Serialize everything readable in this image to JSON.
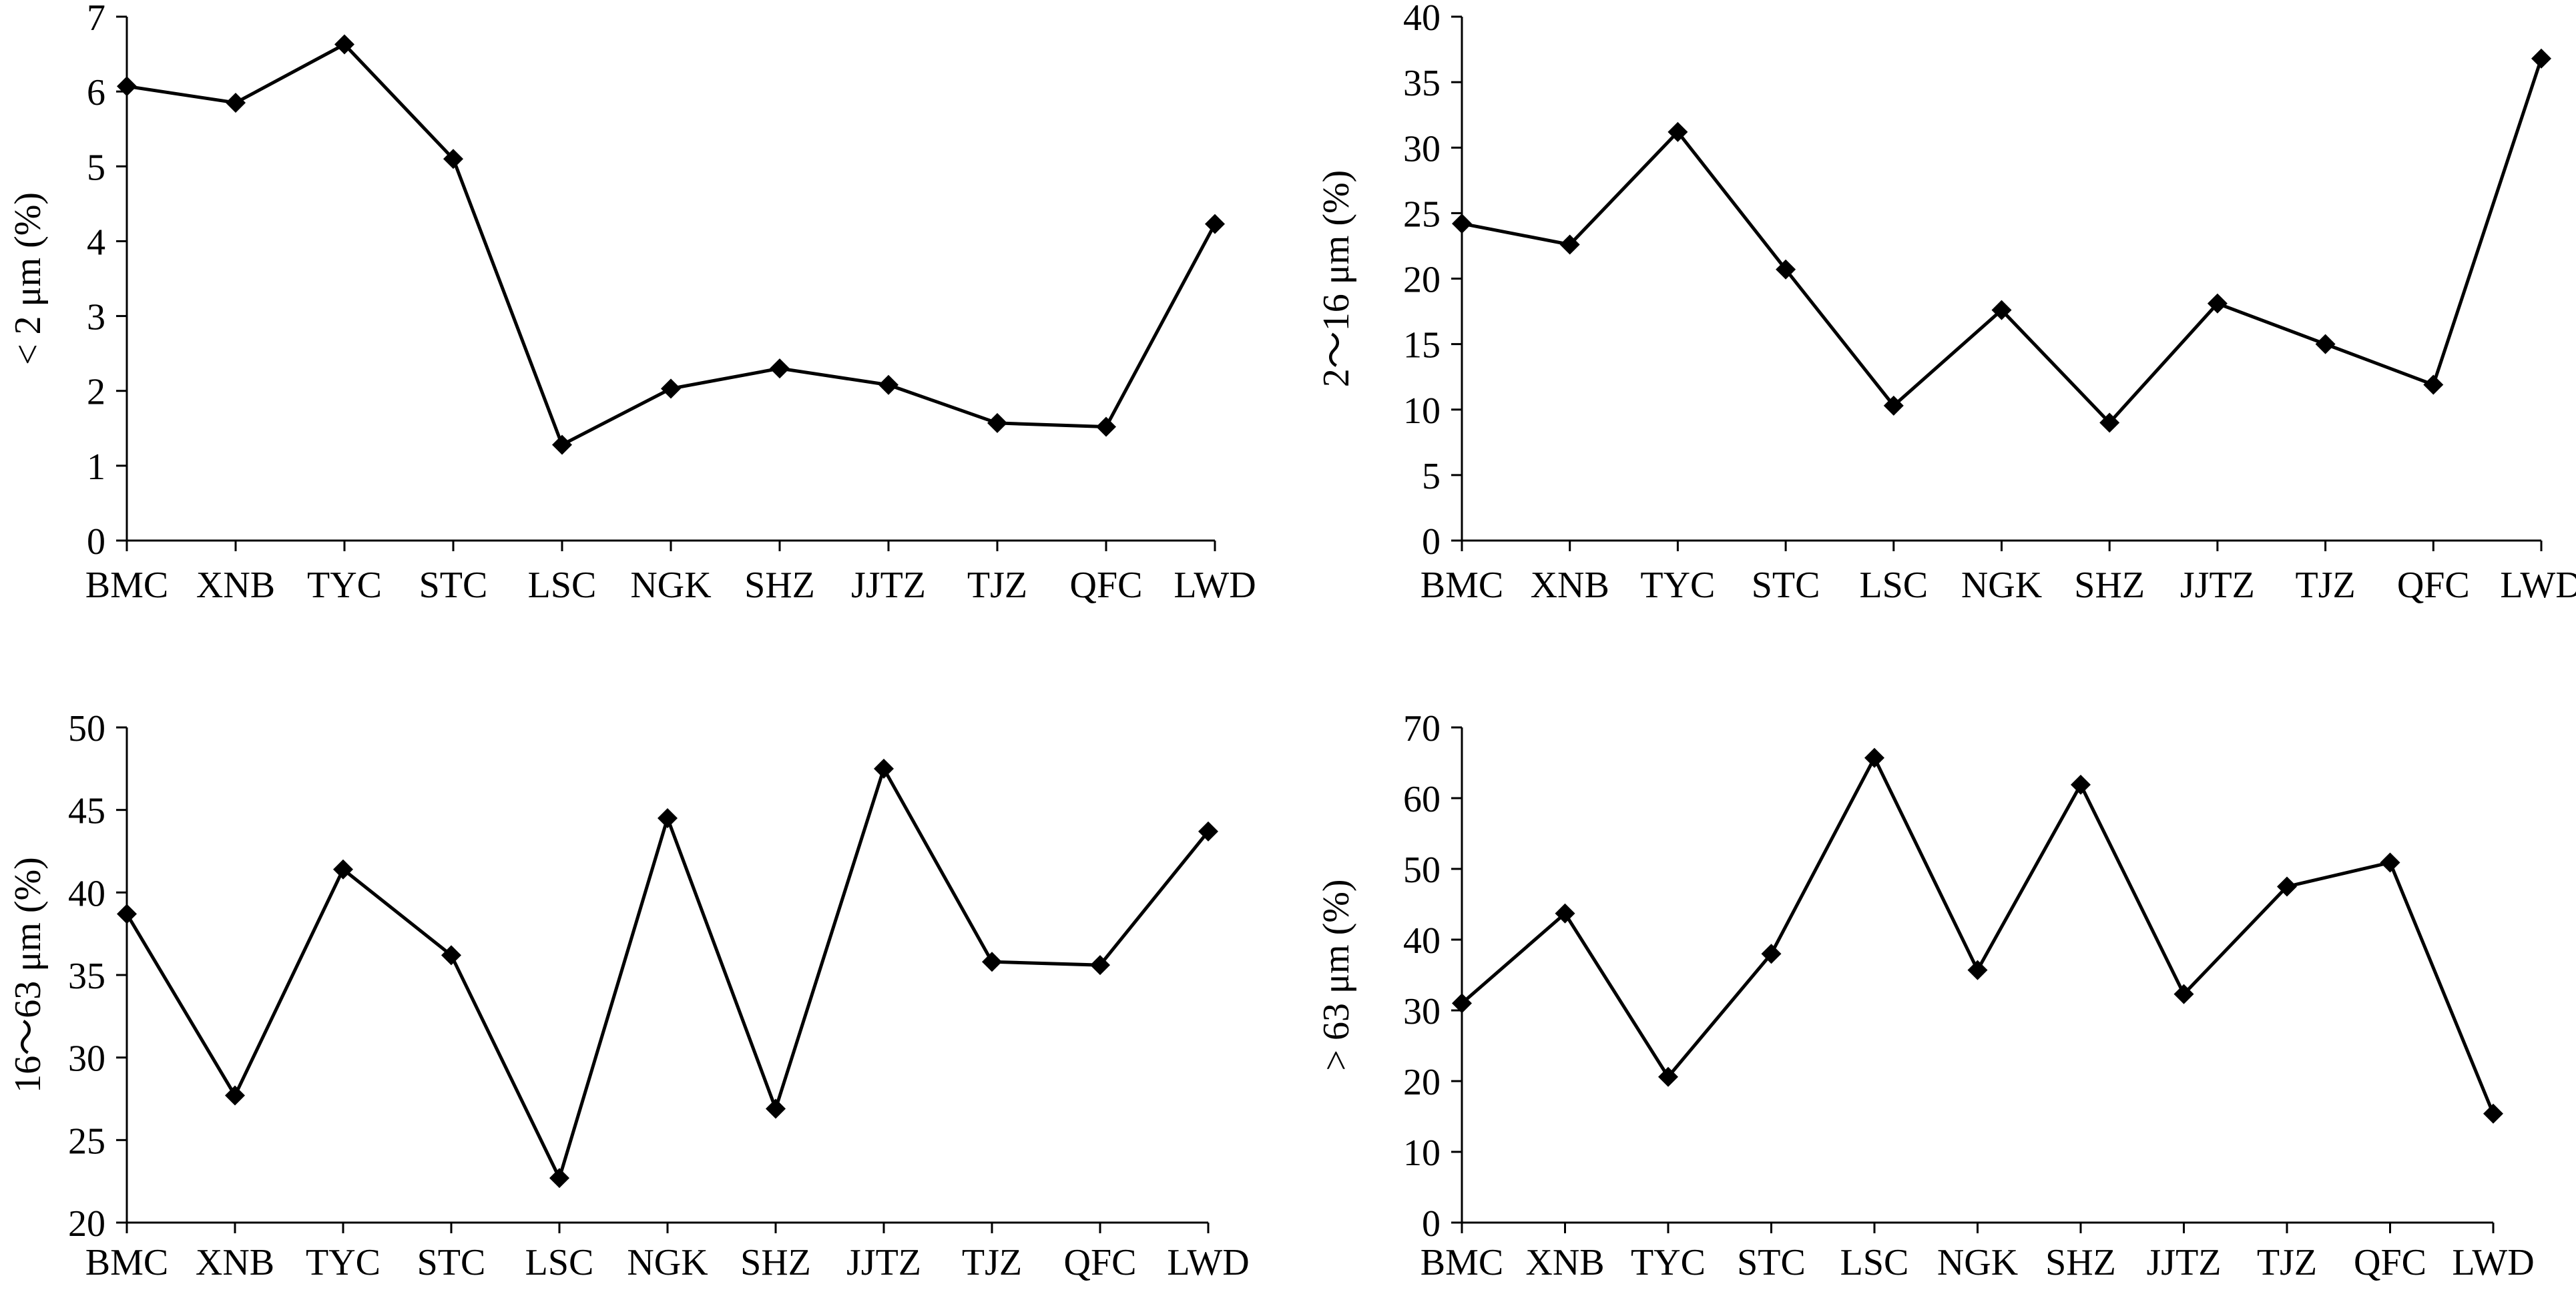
{
  "chart_data": [
    {
      "type": "line",
      "categories": [
        "BMC",
        "XNB",
        "TYC",
        "STC",
        "LSC",
        "NGK",
        "SHZ",
        "JJTZ",
        "TJZ",
        "QFC",
        "LWD"
      ],
      "series": [
        {
          "values": [
            6.07,
            5.85,
            6.63,
            5.1,
            1.28,
            2.03,
            2.3,
            2.08,
            1.57,
            1.52,
            4.23
          ]
        }
      ],
      "ylabel": "< 2 μm (%)",
      "ylim": [
        0,
        7
      ],
      "yticks": [
        0,
        1,
        2,
        3,
        4,
        5,
        6,
        7
      ],
      "grid": false
    },
    {
      "type": "line",
      "categories": [
        "BMC",
        "XNB",
        "TYC",
        "STC",
        "LSC",
        "NGK",
        "SHZ",
        "JJTZ",
        "TJZ",
        "QFC",
        "LWD"
      ],
      "series": [
        {
          "values": [
            24.2,
            22.6,
            31.2,
            20.7,
            10.3,
            17.6,
            9.0,
            18.1,
            15.0,
            11.9,
            36.8
          ]
        }
      ],
      "ylabel": "2～16 μm (%)",
      "ylim": [
        0,
        40
      ],
      "yticks": [
        0,
        5,
        10,
        15,
        20,
        25,
        30,
        35,
        40
      ],
      "grid": false
    },
    {
      "type": "line",
      "categories": [
        "BMC",
        "XNB",
        "TYC",
        "STC",
        "LSC",
        "NGK",
        "SHZ",
        "JJTZ",
        "TJZ",
        "QFC",
        "LWD"
      ],
      "series": [
        {
          "values": [
            38.7,
            27.7,
            41.4,
            36.2,
            22.7,
            44.5,
            26.9,
            47.5,
            35.8,
            35.6,
            43.7
          ]
        }
      ],
      "ylabel": "16～63 μm (%)",
      "ylim": [
        20,
        50
      ],
      "yticks": [
        20,
        25,
        30,
        35,
        40,
        45,
        50
      ],
      "grid": false
    },
    {
      "type": "line",
      "categories": [
        "BMC",
        "XNB",
        "TYC",
        "STC",
        "LSC",
        "NGK",
        "SHZ",
        "JJTZ",
        "TJZ",
        "QFC",
        "LWD"
      ],
      "series": [
        {
          "values": [
            31.0,
            43.7,
            20.6,
            38.0,
            65.7,
            35.7,
            61.9,
            32.3,
            47.5,
            50.9,
            15.4
          ]
        }
      ],
      "ylabel": "> 63 μm (%)",
      "ylim": [
        0,
        70
      ],
      "yticks": [
        0,
        10,
        20,
        30,
        40,
        50,
        60,
        70
      ],
      "grid": false
    }
  ]
}
